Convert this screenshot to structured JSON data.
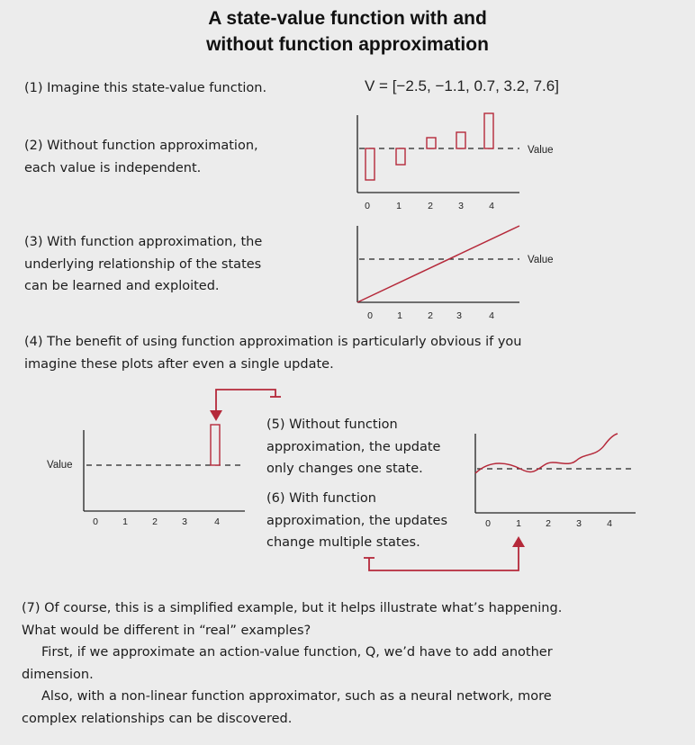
{
  "title": [
    "A state-value function with and",
    "without function approximation"
  ],
  "steps": {
    "s1": "(1) Imagine this state-value function.",
    "s2": [
      "(2) Without function approximation,",
      "each value is independent."
    ],
    "s3": [
      "(3) With function approximation, the",
      "underlying relationship of the states",
      "can be learned and exploited."
    ],
    "s4": [
      "(4) The benefit of using function approximation is particularly obvious if you",
      "imagine these plots after even a single update."
    ],
    "s5": [
      "(5) Without function",
      "approximation, the update",
      "only changes one state."
    ],
    "s6": [
      "(6) With function",
      "approximation, the updates",
      "change multiple states."
    ],
    "s7": {
      "lines": [
        "(7) Of course, this is a simplified example, but it helps illustrate what’s happening.",
        "What would be different in “real” examples?",
        "First, if we approximate an action-value function, Q, we’d have to add another",
        "dimension.",
        "Also, with a non-linear function approximator, such as a neural network, more",
        "complex relationships can be discovered."
      ]
    }
  },
  "formula": "V = [−2.5, −1.1, 0.7, 3.2, 7.6]",
  "value_label": "Value",
  "x_ticks": [
    "0",
    "1",
    "2",
    "3",
    "4"
  ],
  "colors": {
    "accent": "#b5293a",
    "text": "#1c1c1c",
    "background": "#ececec"
  },
  "chart_data": [
    {
      "type": "bar",
      "categories": [
        "0",
        "1",
        "2",
        "3",
        "4"
      ],
      "values": [
        -2.5,
        -1.1,
        0.7,
        3.2,
        7.6
      ],
      "ylabel": "Value"
    },
    {
      "type": "line",
      "x": [
        0,
        4
      ],
      "y": [
        -2.5,
        7.6
      ],
      "ylabel": "Value"
    },
    {
      "type": "bar",
      "categories": [
        "4"
      ],
      "values": [
        1
      ],
      "ylabel": "Value"
    },
    {
      "type": "line",
      "x": [
        0,
        0.5,
        1,
        1.5,
        2,
        2.5,
        3,
        3.5,
        4
      ],
      "y": [
        0.4,
        0.8,
        -0.5,
        0.5,
        0.2,
        1.6,
        1.4,
        2.6,
        4.0
      ]
    }
  ]
}
